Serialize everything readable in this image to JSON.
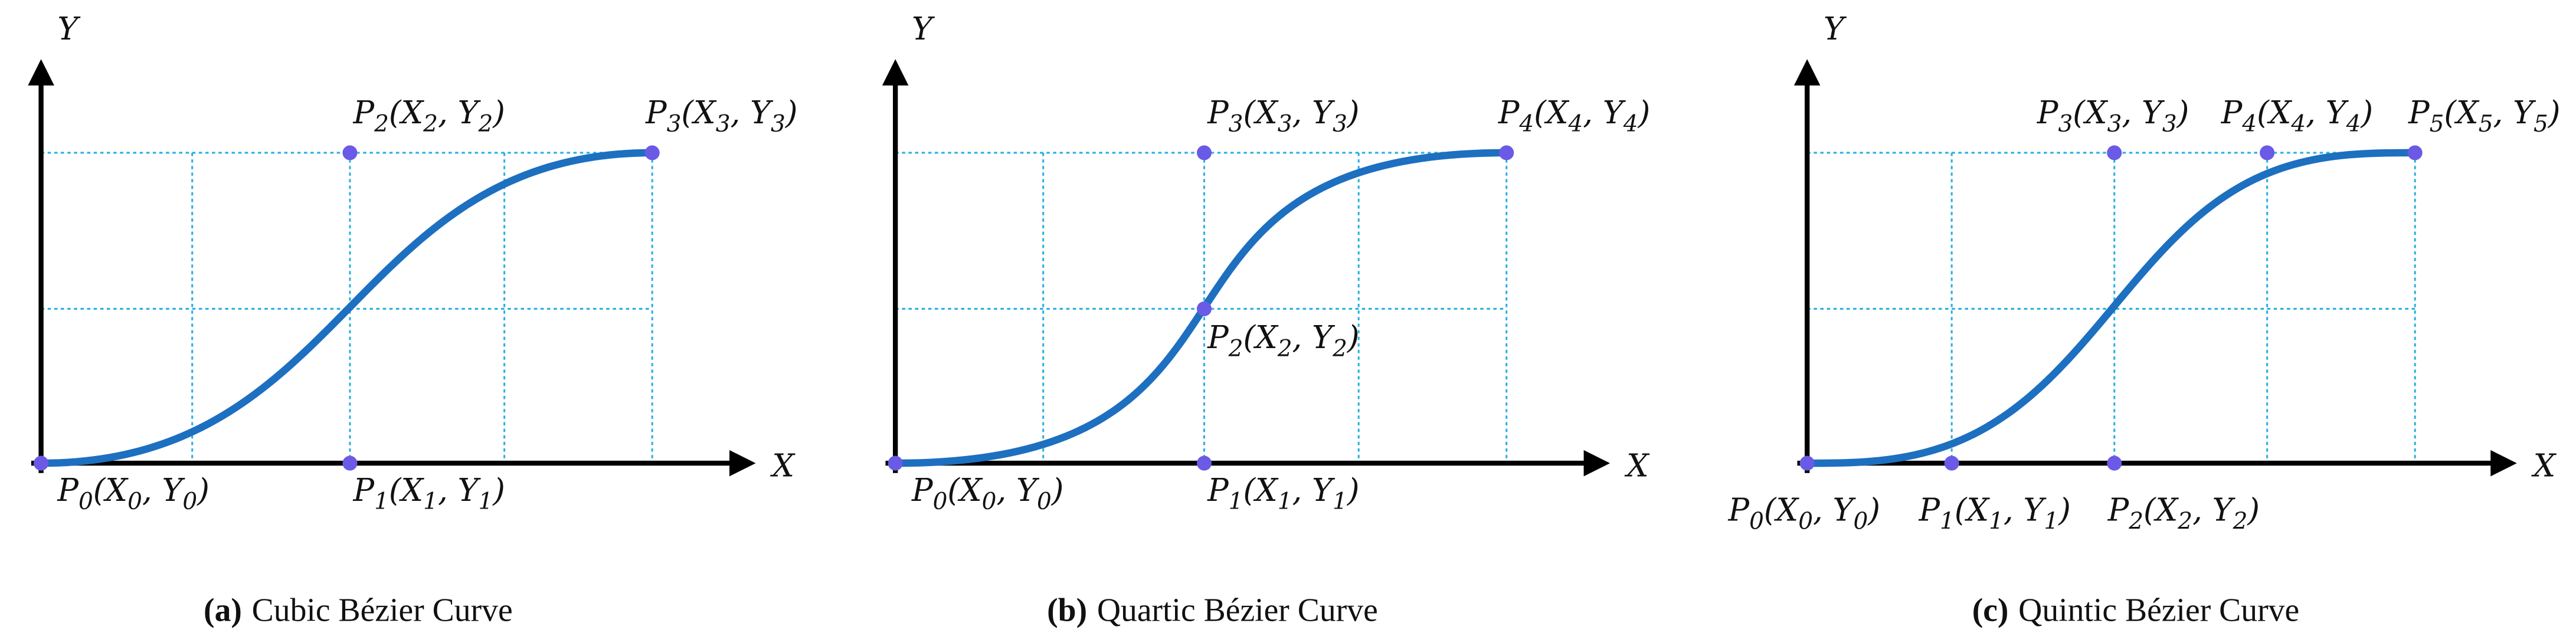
{
  "panels": [
    {
      "caption": {
        "tag": "(a)",
        "text": "Cubic Bézier Curve"
      },
      "x_axis": "X",
      "y_axis": "Y",
      "points": [
        {
          "label": [
            "P",
            "0",
            "(X",
            "0",
            ", Y",
            "0",
            ")"
          ]
        },
        {
          "label": [
            "P",
            "1",
            "(X",
            "1",
            ", Y",
            "1",
            ")"
          ]
        },
        {
          "label": [
            "P",
            "2",
            "(X",
            "2",
            ", Y",
            "2",
            ")"
          ]
        },
        {
          "label": [
            "P",
            "3",
            "(X",
            "3",
            ", Y",
            "3",
            ")"
          ]
        }
      ]
    },
    {
      "caption": {
        "tag": "(b)",
        "text": "Quartic Bézier Curve"
      },
      "x_axis": "X",
      "y_axis": "Y",
      "points": [
        {
          "label": [
            "P",
            "0",
            "(X",
            "0",
            ", Y",
            "0",
            ")"
          ]
        },
        {
          "label": [
            "P",
            "1",
            "(X",
            "1",
            ", Y",
            "1",
            ")"
          ]
        },
        {
          "label": [
            "P",
            "2",
            "(X",
            "2",
            ", Y",
            "2",
            ")"
          ]
        },
        {
          "label": [
            "P",
            "3",
            "(X",
            "3",
            ", Y",
            "3",
            ")"
          ]
        },
        {
          "label": [
            "P",
            "4",
            "(X",
            "4",
            ", Y",
            "4",
            ")"
          ]
        }
      ]
    },
    {
      "caption": {
        "tag": "(c)",
        "text": "Quintic Bézier Curve"
      },
      "x_axis": "X",
      "y_axis": "Y",
      "points": [
        {
          "label": [
            "P",
            "0",
            "(X",
            "0",
            ", Y",
            "0",
            ")"
          ]
        },
        {
          "label": [
            "P",
            "1",
            "(X",
            "1",
            ", Y",
            "1",
            ")"
          ]
        },
        {
          "label": [
            "P",
            "2",
            "(X",
            "2",
            ", Y",
            "2",
            ")"
          ]
        },
        {
          "label": [
            "P",
            "3",
            "(X",
            "3",
            ", Y",
            "3",
            ")"
          ]
        },
        {
          "label": [
            "P",
            "4",
            "(X",
            "4",
            ", Y",
            "4",
            ")"
          ]
        },
        {
          "label": [
            "P",
            "5",
            "(X",
            "5",
            ", Y",
            "5",
            ")"
          ]
        }
      ]
    }
  ]
}
